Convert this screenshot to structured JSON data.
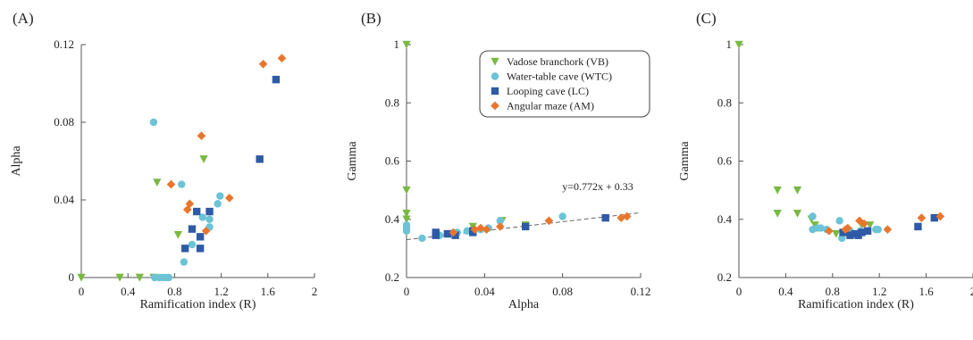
{
  "colors": {
    "VB": "#79b943",
    "WTC": "#6cc3d6",
    "LC": "#2e5aa6",
    "AM": "#e8762d"
  },
  "legend": {
    "entries": [
      {
        "key": "VB",
        "label": "Vadose branchork (VB)",
        "marker": "triangle-down"
      },
      {
        "key": "WTC",
        "label": "Water-table cave (WTC)",
        "marker": "circle"
      },
      {
        "key": "LC",
        "label": "Looping cave (LC)",
        "marker": "square"
      },
      {
        "key": "AM",
        "label": "Angular maze (AM)",
        "marker": "diamond"
      }
    ]
  },
  "chart_data": [
    {
      "type": "scatter",
      "panel_label": "(A)",
      "title": "",
      "xlabel": "Ramification index (R)",
      "ylabel": "Alpha",
      "xlim": [
        0,
        2
      ],
      "ylim": [
        0,
        0.12
      ],
      "xticks": [
        0,
        0.4,
        0.8,
        1.2,
        1.6,
        2
      ],
      "xtick_labels": [
        "0",
        "0.4",
        "0.8",
        "1.2",
        "1.6",
        "2"
      ],
      "yticks": [
        0,
        0.04,
        0.08,
        0.12
      ],
      "ytick_labels": [
        "0",
        "0.04",
        "0.08",
        "0.12"
      ],
      "series": [
        {
          "name": "Vadose branchork (VB)",
          "key": "VB",
          "marker": "triangle-down",
          "points": [
            [
              0,
              0
            ],
            [
              0.33,
              0
            ],
            [
              0.5,
              0
            ],
            [
              0.62,
              0
            ],
            [
              0.65,
              0.049
            ],
            [
              0.83,
              0.022
            ],
            [
              1.05,
              0.061
            ]
          ]
        },
        {
          "name": "Water-table cave (WTC)",
          "key": "WTC",
          "marker": "circle",
          "points": [
            [
              0.62,
              0.08
            ],
            [
              0.63,
              0
            ],
            [
              0.67,
              0
            ],
            [
              0.7,
              0
            ],
            [
              0.73,
              0
            ],
            [
              0.75,
              0
            ],
            [
              0.86,
              0.048
            ],
            [
              0.88,
              0.008
            ],
            [
              0.95,
              0.017
            ],
            [
              1.04,
              0.031
            ],
            [
              1.1,
              0.03
            ],
            [
              1.1,
              0.026
            ],
            [
              1.17,
              0.038
            ],
            [
              1.19,
              0.042
            ]
          ]
        },
        {
          "name": "Looping cave (LC)",
          "key": "LC",
          "marker": "square",
          "points": [
            [
              0.89,
              0.015
            ],
            [
              0.95,
              0.025
            ],
            [
              0.99,
              0.034
            ],
            [
              1.02,
              0.021
            ],
            [
              1.02,
              0.015
            ],
            [
              1.1,
              0.034
            ],
            [
              1.53,
              0.061
            ],
            [
              1.67,
              0.102
            ]
          ]
        },
        {
          "name": "Angular maze (AM)",
          "key": "AM",
          "marker": "diamond",
          "points": [
            [
              0.77,
              0.048
            ],
            [
              0.91,
              0.035
            ],
            [
              0.93,
              0.038
            ],
            [
              1.03,
              0.073
            ],
            [
              1.07,
              0.024
            ],
            [
              1.27,
              0.041
            ],
            [
              1.56,
              0.11
            ],
            [
              1.72,
              0.113
            ]
          ]
        }
      ]
    },
    {
      "type": "scatter",
      "panel_label": "(B)",
      "title": "",
      "xlabel": "Alpha",
      "ylabel": "Gamma",
      "xlim": [
        0,
        0.12
      ],
      "ylim": [
        0.2,
        1
      ],
      "xticks": [
        0,
        0.04,
        0.08,
        0.12
      ],
      "xtick_labels": [
        "0",
        "0.04",
        "0.08",
        "0.12"
      ],
      "yticks": [
        0.2,
        0.4,
        0.6,
        0.8,
        1
      ],
      "ytick_labels": [
        "0.2",
        "0.4",
        "0.6",
        "0.8",
        "1"
      ],
      "fit": {
        "slope": 0.772,
        "intercept": 0.33,
        "x_range": [
          0,
          0.12
        ],
        "label": "y=0.772x + 0.33"
      },
      "legend_position": "top-right",
      "series": [
        {
          "name": "Vadose branchork (VB)",
          "key": "VB",
          "marker": "triangle-down",
          "points": [
            [
              0,
              1.0
            ],
            [
              0,
              0.5
            ],
            [
              0,
              0.42
            ],
            [
              0,
              0.4
            ],
            [
              0.022,
              0.35
            ],
            [
              0.034,
              0.375
            ],
            [
              0.049,
              0.395
            ],
            [
              0.061,
              0.38
            ]
          ]
        },
        {
          "name": "Water-table cave (WTC)",
          "key": "WTC",
          "marker": "circle",
          "points": [
            [
              0,
              0.38
            ],
            [
              0,
              0.37
            ],
            [
              0,
              0.36
            ],
            [
              0.008,
              0.335
            ],
            [
              0.017,
              0.345
            ],
            [
              0.026,
              0.355
            ],
            [
              0.031,
              0.36
            ],
            [
              0.038,
              0.365
            ],
            [
              0.042,
              0.37
            ],
            [
              0.048,
              0.395
            ],
            [
              0.08,
              0.41
            ]
          ]
        },
        {
          "name": "Looping cave (LC)",
          "key": "LC",
          "marker": "square",
          "points": [
            [
              0.015,
              0.345
            ],
            [
              0.015,
              0.355
            ],
            [
              0.021,
              0.35
            ],
            [
              0.025,
              0.345
            ],
            [
              0.034,
              0.355
            ],
            [
              0.034,
              0.36
            ],
            [
              0.061,
              0.375
            ],
            [
              0.102,
              0.405
            ]
          ]
        },
        {
          "name": "Angular maze (AM)",
          "key": "AM",
          "marker": "diamond",
          "points": [
            [
              0.024,
              0.355
            ],
            [
              0.035,
              0.365
            ],
            [
              0.038,
              0.37
            ],
            [
              0.041,
              0.365
            ],
            [
              0.048,
              0.375
            ],
            [
              0.073,
              0.395
            ],
            [
              0.11,
              0.405
            ],
            [
              0.113,
              0.41
            ]
          ]
        }
      ]
    },
    {
      "type": "scatter",
      "panel_label": "(C)",
      "title": "",
      "xlabel": "Ramification index (R)",
      "ylabel": "Gamma",
      "xlim": [
        0,
        2
      ],
      "ylim": [
        0.2,
        1
      ],
      "xticks": [
        0,
        0.4,
        0.8,
        1.2,
        1.6,
        2
      ],
      "xtick_labels": [
        "0",
        "0.4",
        "0.8",
        "1.2",
        "1.6",
        "2"
      ],
      "yticks": [
        0.2,
        0.4,
        0.6,
        0.8,
        1
      ],
      "ytick_labels": [
        "0.2",
        "0.4",
        "0.6",
        "0.8",
        "1"
      ],
      "series": [
        {
          "name": "Vadose branchork (VB)",
          "key": "VB",
          "marker": "triangle-down",
          "points": [
            [
              0,
              1.0
            ],
            [
              0.33,
              0.5
            ],
            [
              0.5,
              0.5
            ],
            [
              0.33,
              0.42
            ],
            [
              0.5,
              0.42
            ],
            [
              0.62,
              0.4
            ],
            [
              0.65,
              0.38
            ],
            [
              0.83,
              0.35
            ],
            [
              1.05,
              0.38
            ],
            [
              1.12,
              0.38
            ]
          ]
        },
        {
          "name": "Water-table cave (WTC)",
          "key": "WTC",
          "marker": "circle",
          "points": [
            [
              0.63,
              0.41
            ],
            [
              0.63,
              0.365
            ],
            [
              0.67,
              0.37
            ],
            [
              0.7,
              0.37
            ],
            [
              0.75,
              0.365
            ],
            [
              0.86,
              0.395
            ],
            [
              0.88,
              0.335
            ],
            [
              0.95,
              0.36
            ],
            [
              1.04,
              0.36
            ],
            [
              1.1,
              0.36
            ],
            [
              1.17,
              0.365
            ],
            [
              1.19,
              0.365
            ]
          ]
        },
        {
          "name": "Looping cave (LC)",
          "key": "LC",
          "marker": "square",
          "points": [
            [
              0.89,
              0.355
            ],
            [
              0.95,
              0.345
            ],
            [
              0.99,
              0.35
            ],
            [
              1.02,
              0.345
            ],
            [
              1.05,
              0.355
            ],
            [
              1.1,
              0.36
            ],
            [
              1.53,
              0.375
            ],
            [
              1.67,
              0.405
            ]
          ]
        },
        {
          "name": "Angular maze (AM)",
          "key": "AM",
          "marker": "diamond",
          "points": [
            [
              0.77,
              0.36
            ],
            [
              0.91,
              0.365
            ],
            [
              0.93,
              0.37
            ],
            [
              1.03,
              0.395
            ],
            [
              1.07,
              0.385
            ],
            [
              1.27,
              0.365
            ],
            [
              1.56,
              0.405
            ],
            [
              1.72,
              0.41
            ]
          ]
        }
      ]
    }
  ]
}
